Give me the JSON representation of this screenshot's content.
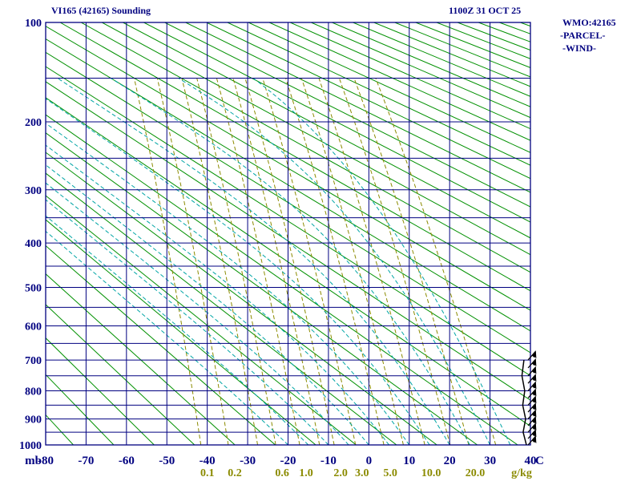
{
  "header": {
    "title": "VI165 (42165) Sounding",
    "datetime": "1100Z 31 OCT 25"
  },
  "side_legend": {
    "wmo": "WMO:42165",
    "parcel": "-PARCEL-",
    "wind": "-WIND-"
  },
  "chart_data": {
    "type": "line",
    "diagram": "stuve-thermodynamic-sounding",
    "pressure_axis": {
      "unit_label": "mb",
      "labeled_ticks": [
        100,
        200,
        300,
        400,
        500,
        600,
        700,
        800,
        900,
        1000
      ],
      "minor_step_mb": 50,
      "range": [
        100,
        1000
      ],
      "scale": "p^0.2859"
    },
    "temperature_axis": {
      "unit_label": "C",
      "ticks": [
        -80,
        -70,
        -60,
        -50,
        -40,
        -30,
        -20,
        -10,
        0,
        10,
        20,
        30,
        40
      ],
      "tick_step": 10,
      "range": [
        -80,
        40
      ]
    },
    "mixing_ratio_lines": {
      "unit_label": "g/kg",
      "labeled_values": [
        "0.1",
        "0.2",
        "0.6",
        "1.0",
        "2.0",
        "3.0",
        "5.0",
        "10.0",
        "20.0"
      ],
      "drawn_values": [
        0.1,
        0.2,
        0.4,
        0.6,
        1.0,
        1.5,
        2.0,
        3.0,
        5.0,
        7.0,
        10.0,
        15.0,
        20.0,
        30.0
      ],
      "top_pressure_mb": 150
    },
    "dry_adiabats": {
      "theta_K_start": 200,
      "theta_K_end": 600,
      "step_K": 10
    },
    "moist_adiabats": {
      "thetaw_C": [
        -20,
        -15,
        -10,
        -5,
        0,
        5,
        10,
        15,
        20,
        25,
        30,
        35
      ],
      "top_pressure_mb": 150
    },
    "sounding_trace": {
      "points_p_T": [
        [
          1000,
          39.0
        ],
        [
          950,
          38.2
        ],
        [
          900,
          38.8
        ],
        [
          850,
          38.1
        ],
        [
          800,
          38.6
        ],
        [
          750,
          37.9
        ],
        [
          700,
          38.4
        ]
      ]
    },
    "wind_barbs": {
      "pressures": [
        1000,
        975,
        950,
        925,
        900,
        875,
        850,
        825,
        800,
        775,
        750,
        725,
        700
      ]
    },
    "colors": {
      "grid": "#000080",
      "labels": "#000080",
      "dry_adiabat": "#009000",
      "mixing_ratio": "#8b8b00",
      "moist_adiabat": "#00a5a5",
      "trace": "#000000"
    }
  }
}
